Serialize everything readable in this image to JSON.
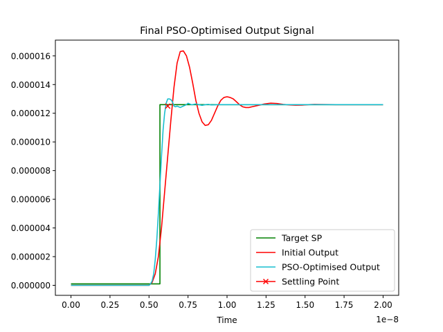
{
  "chart_data": {
    "type": "line",
    "title": "Final PSO-Optimised Output Signal",
    "xlabel": "Time",
    "ylabel": "",
    "x_offset_label": "1e−8",
    "xlim": [
      -1e-09,
      2.1e-08
    ],
    "ylim": [
      -7e-07,
      1.71e-05
    ],
    "x_ticks": [
      {
        "value": 0,
        "label": "0.00"
      },
      {
        "value": 2.5e-09,
        "label": "0.25"
      },
      {
        "value": 5e-09,
        "label": "0.50"
      },
      {
        "value": 7.5e-09,
        "label": "0.75"
      },
      {
        "value": 1e-08,
        "label": "1.00"
      },
      {
        "value": 1.25e-08,
        "label": "1.25"
      },
      {
        "value": 1.5e-08,
        "label": "1.50"
      },
      {
        "value": 1.75e-08,
        "label": "1.75"
      },
      {
        "value": 2e-08,
        "label": "2.00"
      }
    ],
    "y_ticks": [
      {
        "value": 0,
        "label": "0.000000"
      },
      {
        "value": 2e-06,
        "label": "0.000002"
      },
      {
        "value": 4e-06,
        "label": "0.000004"
      },
      {
        "value": 6e-06,
        "label": "0.000006"
      },
      {
        "value": 8e-06,
        "label": "0.000008"
      },
      {
        "value": 1e-05,
        "label": "0.000010"
      },
      {
        "value": 1.2e-05,
        "label": "0.000012"
      },
      {
        "value": 1.4e-05,
        "label": "0.000014"
      },
      {
        "value": 1.6e-05,
        "label": "0.000016"
      }
    ],
    "grid": false,
    "legend_position": "lower-right",
    "series": [
      {
        "name": "Target SP",
        "color": "#008000",
        "marker": "none",
        "x": [
          0,
          5.7e-09,
          5.7e-09,
          2e-08
        ],
        "y": [
          1e-07,
          1e-07,
          1.26e-05,
          1.26e-05
        ]
      },
      {
        "name": "Initial Output",
        "color": "#ff0000",
        "marker": "none",
        "x": [
          0,
          5e-09,
          5.2e-09,
          5.4e-09,
          5.6e-09,
          5.8e-09,
          6e-09,
          6.2e-09,
          6.4e-09,
          6.6e-09,
          6.8e-09,
          7e-09,
          7.2e-09,
          7.4e-09,
          7.6e-09,
          7.8e-09,
          8e-09,
          8.2e-09,
          8.4e-09,
          8.6e-09,
          8.8e-09,
          9e-09,
          9.2e-09,
          9.4e-09,
          9.6e-09,
          9.8e-09,
          1e-08,
          1.02e-08,
          1.04e-08,
          1.06e-08,
          1.08e-08,
          1.1e-08,
          1.12e-08,
          1.14e-08,
          1.16e-08,
          1.18e-08,
          1.2e-08,
          1.22e-08,
          1.24e-08,
          1.28e-08,
          1.32e-08,
          1.36e-08,
          1.4e-08,
          1.44e-08,
          1.48e-08,
          1.52e-08,
          1.56e-08,
          1.6e-08,
          1.7e-08,
          1.8e-08,
          1.9e-08,
          2e-08
        ],
        "y": [
          0,
          0,
          2e-07,
          8e-07,
          2e-06,
          4e-06,
          6.5e-06,
          9e-06,
          1.15e-05,
          1.38e-05,
          1.55e-05,
          1.63e-05,
          1.635e-05,
          1.6e-05,
          1.52e-05,
          1.41e-05,
          1.29e-05,
          1.2e-05,
          1.14e-05,
          1.115e-05,
          1.12e-05,
          1.15e-05,
          1.2e-05,
          1.25e-05,
          1.29e-05,
          1.31e-05,
          1.315e-05,
          1.31e-05,
          1.3e-05,
          1.28e-05,
          1.26e-05,
          1.245e-05,
          1.24e-05,
          1.24e-05,
          1.245e-05,
          1.25e-05,
          1.255e-05,
          1.26e-05,
          1.265e-05,
          1.27e-05,
          1.268e-05,
          1.262e-05,
          1.258e-05,
          1.256e-05,
          1.257e-05,
          1.26e-05,
          1.262e-05,
          1.261e-05,
          1.26e-05,
          1.26e-05,
          1.26e-05,
          1.26e-05
        ]
      },
      {
        "name": "PSO-Optimised Output",
        "color": "#17becf",
        "marker": "none",
        "x": [
          0,
          5e-09,
          5.1e-09,
          5.2e-09,
          5.3e-09,
          5.4e-09,
          5.5e-09,
          5.6e-09,
          5.7e-09,
          5.8e-09,
          5.9e-09,
          6e-09,
          6.1e-09,
          6.2e-09,
          6.3e-09,
          6.4e-09,
          6.5e-09,
          6.6e-09,
          6.7e-09,
          6.8e-09,
          6.9e-09,
          7e-09,
          7.1e-09,
          7.2e-09,
          7.3e-09,
          7.4e-09,
          7.5e-09,
          7.6e-09,
          7.7e-09,
          7.8e-09,
          8e-09,
          8.2e-09,
          8.4e-09,
          8.6e-09,
          8.8e-09,
          9e-09,
          9.4e-09,
          9.8e-09,
          1e-08,
          1.1e-08,
          1.2e-08,
          1.4e-08,
          1.6e-08,
          1.8e-08,
          2e-08
        ],
        "y": [
          0,
          0,
          1e-07,
          3e-07,
          8e-07,
          1.8e-06,
          3.2e-06,
          5e-06,
          7e-06,
          9e-06,
          1.08e-05,
          1.2e-05,
          1.27e-05,
          1.3e-05,
          1.3e-05,
          1.295e-05,
          1.28e-05,
          1.25e-05,
          1.245e-05,
          1.25e-05,
          1.245e-05,
          1.24e-05,
          1.245e-05,
          1.25e-05,
          1.255e-05,
          1.26e-05,
          1.27e-05,
          1.265e-05,
          1.26e-05,
          1.26e-05,
          1.265e-05,
          1.26e-05,
          1.255e-05,
          1.26e-05,
          1.262e-05,
          1.258e-05,
          1.26e-05,
          1.26e-05,
          1.26e-05,
          1.26e-05,
          1.26e-05,
          1.26e-05,
          1.26e-05,
          1.26e-05,
          1.26e-05
        ]
      },
      {
        "name": "Settling Point",
        "color": "#ff0000",
        "marker": "x",
        "x": [
          6.2e-09
        ],
        "y": [
          1.25e-05
        ]
      }
    ]
  }
}
